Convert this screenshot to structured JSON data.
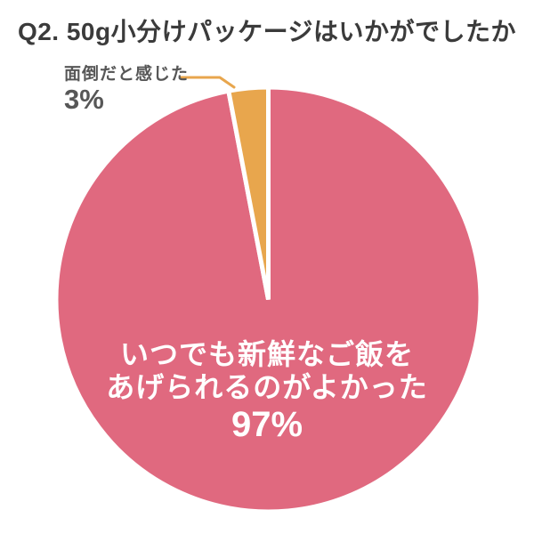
{
  "page": {
    "background": "#ffffff"
  },
  "header": {
    "title": "Q2. 50g小分けパッケージはいかがでしたか",
    "color": "#3b3b3b"
  },
  "callout": {
    "label": "面倒だと感じた",
    "pct": "3%",
    "text_color": "#575757",
    "line_color": "#e8a64d"
  },
  "chart_data": {
    "type": "pie",
    "title": "Q2. 50g小分けパッケージはいかがでしたか",
    "direction": "clockwise",
    "start_angle": "12-oclock",
    "legend_position": "none",
    "labels_on_chart": true,
    "slices": [
      {
        "label": "いつでも新鮮なご飯をあげられるのがよかった",
        "label_lines": [
          "いつでも新鮮なご飯を",
          "あげられるのがよかった"
        ],
        "value": 97,
        "pct_label": "97%",
        "color": "#e0697f",
        "label_color": "#ffffff"
      },
      {
        "label": "面倒だと感じた",
        "value": 3,
        "pct_label": "3%",
        "color": "#e8a64d",
        "label_color": "#575757"
      }
    ]
  }
}
